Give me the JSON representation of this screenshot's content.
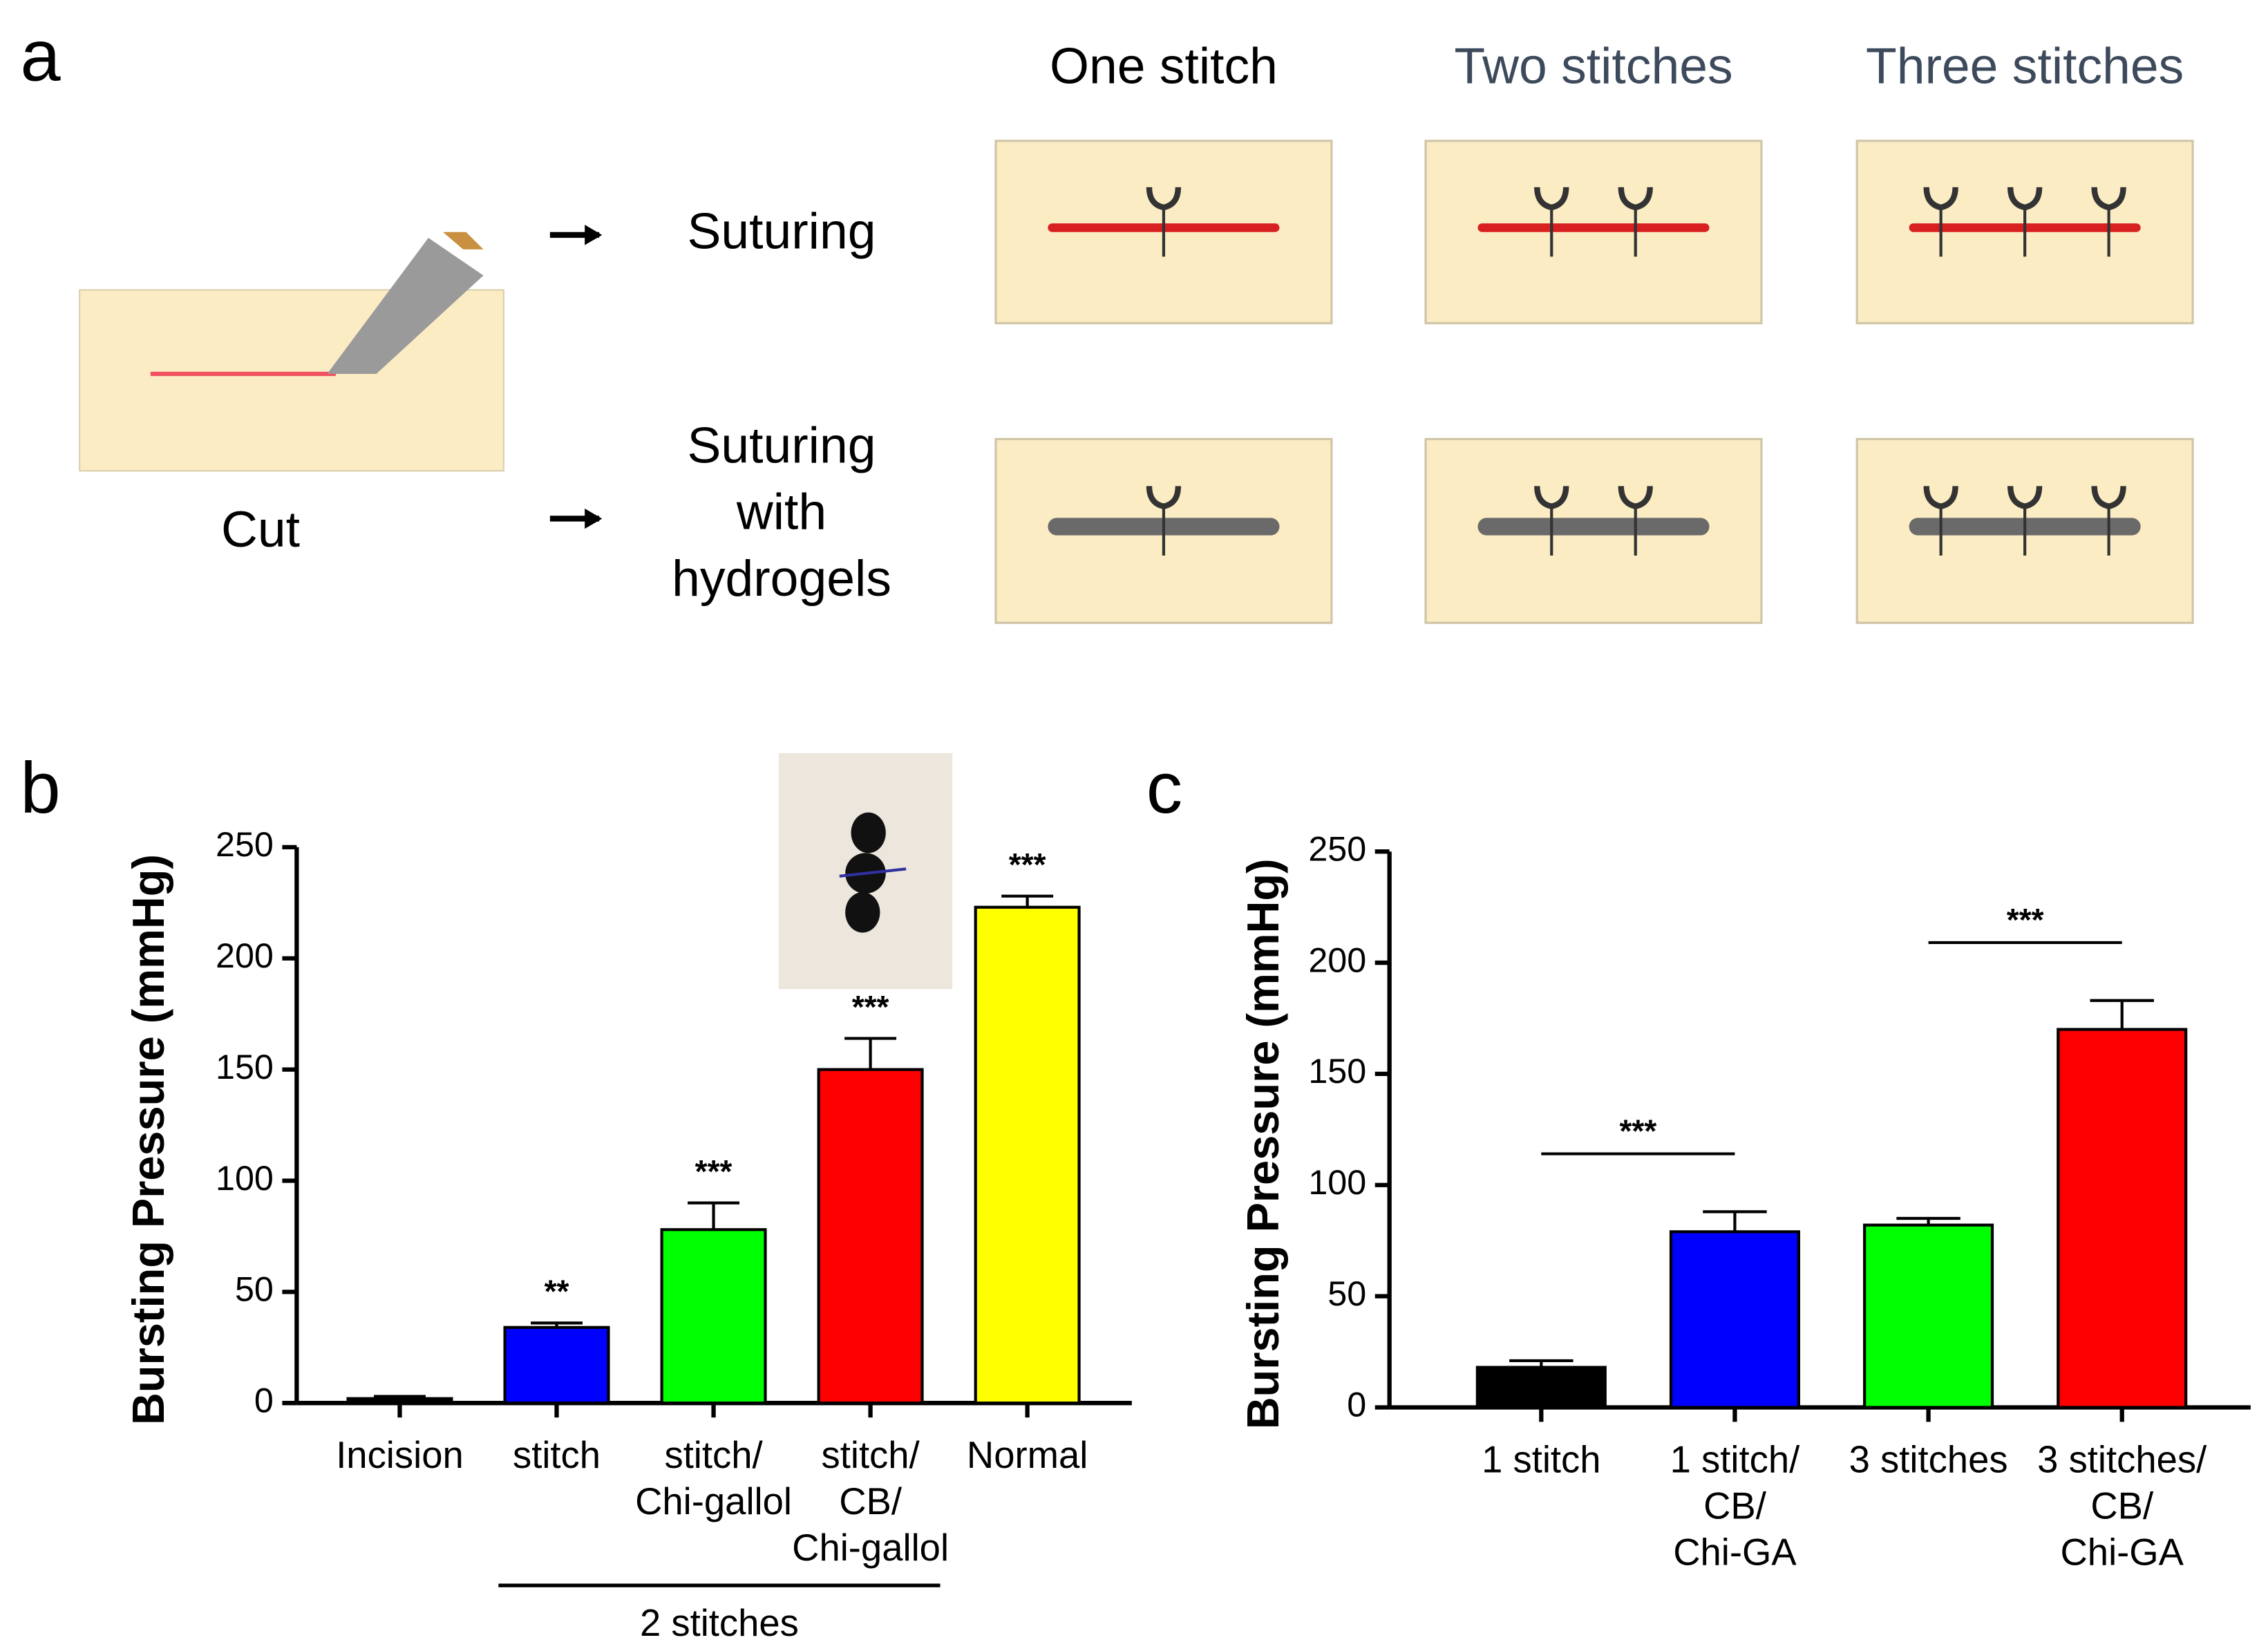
{
  "panel_a": {
    "label": "a",
    "columns": [
      "One stitch",
      "Two stitches",
      "Three stitches"
    ],
    "rows": [
      [
        "Suturing"
      ],
      [
        "Suturing",
        "with",
        "hydrogels"
      ]
    ],
    "cut": "Cut"
  },
  "chart_data": [
    {
      "type": "bar",
      "panel_label": "b",
      "ylabel": "Bursting Pressure (mmHg)",
      "categories": [
        [
          "Incision"
        ],
        [
          "stitch"
        ],
        [
          "stitch/",
          "Chi-gallol"
        ],
        [
          "stitch/",
          "CB/",
          "Chi-gallol"
        ],
        [
          "Normal"
        ]
      ],
      "values": [
        2,
        34,
        78,
        150,
        223
      ],
      "errors": [
        1,
        2,
        12,
        14,
        5
      ],
      "colors": [
        "#000000",
        "#0000ff",
        "#00ff00",
        "#ff0000",
        "#ffff00"
      ],
      "significance": [
        null,
        "**",
        "***",
        "***",
        "***"
      ],
      "group_label": "2 stitches",
      "ylim": [
        0,
        250
      ],
      "yticks": [
        0,
        50,
        100,
        150,
        200,
        250
      ]
    },
    {
      "type": "bar",
      "panel_label": "c",
      "ylabel": "Bursting Pressure (mmHg)",
      "categories": [
        [
          "1 stitch"
        ],
        [
          "1 stitch/",
          "CB/",
          "Chi-GA"
        ],
        [
          "3 stitches"
        ],
        [
          "3 stitches/",
          "CB/",
          "Chi-GA"
        ]
      ],
      "values": [
        18,
        79,
        82,
        170
      ],
      "errors": [
        3,
        9,
        3,
        13
      ],
      "colors": [
        "#000000",
        "#0000ff",
        "#00ff00",
        "#ff0000"
      ],
      "comparisons": [
        {
          "label": "***"
        },
        {
          "label": "***"
        }
      ],
      "ylim": [
        0,
        250
      ],
      "yticks": [
        0,
        50,
        100,
        150,
        200,
        250
      ]
    }
  ]
}
